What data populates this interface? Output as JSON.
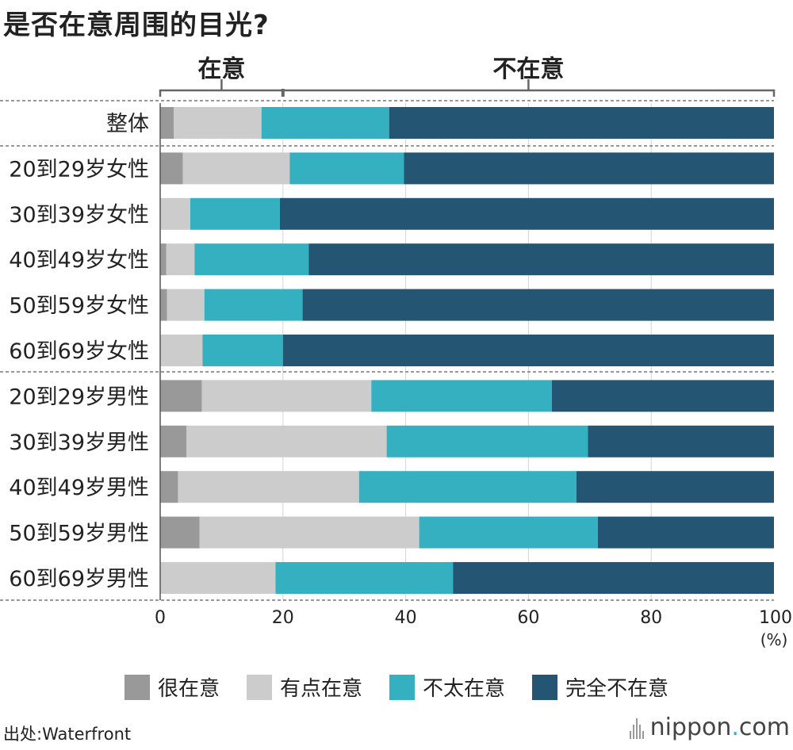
{
  "title": "是否在意周围的目光?",
  "group_headers": {
    "care": "在意",
    "not_care": "不在意"
  },
  "unit_label": "(%)",
  "source": "出处:Waterfront",
  "brand": {
    "name": "nippon",
    "dot": ".",
    "suffix": "com"
  },
  "colors": {
    "very_care": "#999999",
    "somewhat_care": "#cccccc",
    "not_much": "#34b0c0",
    "not_at_all": "#245673"
  },
  "chart_data": {
    "type": "bar",
    "orientation": "horizontal",
    "stacked": true,
    "title": "是否在意周围的目光?",
    "xlabel": "(%)",
    "xlim": [
      0,
      100
    ],
    "xticks": [
      0,
      20,
      40,
      60,
      80,
      100
    ],
    "categories": [
      "整体",
      "20到29岁女性",
      "30到39岁女性",
      "40到49岁女性",
      "50到59岁女性",
      "60到69岁女性",
      "20到29岁男性",
      "30到39岁男性",
      "40到49岁男性",
      "50到59岁男性",
      "60到69岁男性"
    ],
    "series": [
      {
        "name": "很在意",
        "values": [
          2.2,
          3.7,
          0.0,
          1.0,
          1.1,
          0.0,
          6.8,
          4.3,
          2.9,
          6.4,
          0.0
        ]
      },
      {
        "name": "有点在意",
        "values": [
          14.3,
          17.4,
          4.9,
          4.6,
          6.1,
          6.9,
          27.6,
          32.6,
          29.5,
          35.8,
          18.8
        ]
      },
      {
        "name": "不太在意",
        "values": [
          20.8,
          18.6,
          14.6,
          18.6,
          16.0,
          13.1,
          29.4,
          32.8,
          35.4,
          29.1,
          28.9
        ]
      },
      {
        "name": "完全不在意",
        "values": [
          62.7,
          60.3,
          80.5,
          75.8,
          76.8,
          80.0,
          36.2,
          30.3,
          32.2,
          28.7,
          52.3
        ]
      }
    ],
    "legend": [
      "很在意",
      "有点在意",
      "不太在意",
      "完全不在意"
    ],
    "legend_position": "bottom",
    "grid": true,
    "group_brackets": [
      {
        "label": "在意",
        "from": 0,
        "to": 20
      },
      {
        "label": "不在意",
        "from": 20,
        "to": 100
      }
    ]
  }
}
